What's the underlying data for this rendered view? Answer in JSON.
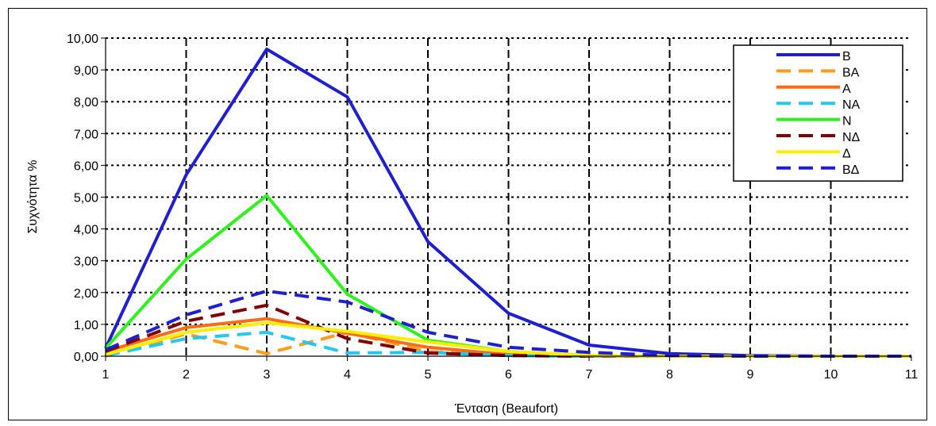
{
  "chart_data": {
    "type": "line",
    "title": "",
    "xlabel": "Ένταση (Beaufort)",
    "ylabel": "Συχνότητα %",
    "x": [
      1,
      2,
      3,
      4,
      5,
      6,
      7,
      8,
      9,
      10,
      11
    ],
    "x_tick_labels": [
      "1",
      "2",
      "3",
      "4",
      "5",
      "6",
      "7",
      "8",
      "9",
      "10",
      "11"
    ],
    "xlim": [
      1,
      11
    ],
    "ylim": [
      0,
      10
    ],
    "y_ticks": [
      0,
      1,
      2,
      3,
      4,
      5,
      6,
      7,
      8,
      9,
      10
    ],
    "y_tick_labels": [
      "0,00",
      "1,00",
      "2,00",
      "3,00",
      "4,00",
      "5,00",
      "6,00",
      "7,00",
      "8,00",
      "9,00",
      "10,00"
    ],
    "grid": true,
    "legend_position": "top-right",
    "series": [
      {
        "name": "Β",
        "color": "#1f1fd1",
        "dash": "solid",
        "values": [
          0.25,
          5.7,
          9.65,
          8.15,
          3.6,
          1.35,
          0.35,
          0.08,
          0.02,
          0.0,
          0.0
        ]
      },
      {
        "name": "ΒΑ",
        "color": "#ff9d1a",
        "dash": "dashed",
        "values": [
          0.02,
          0.7,
          0.08,
          0.75,
          0.15,
          0.02,
          0.0,
          0.0,
          0.0,
          0.0,
          0.0
        ]
      },
      {
        "name": "Α",
        "color": "#ff6a14",
        "dash": "solid",
        "values": [
          0.15,
          0.9,
          1.18,
          0.72,
          0.28,
          0.05,
          0.0,
          0.0,
          0.0,
          0.0,
          0.0
        ]
      },
      {
        "name": "ΝΑ",
        "color": "#22c8f0",
        "dash": "dashed",
        "values": [
          0.02,
          0.55,
          0.75,
          0.1,
          0.12,
          0.02,
          0.0,
          0.0,
          0.0,
          0.0,
          0.0
        ]
      },
      {
        "name": "Ν",
        "color": "#2ef21b",
        "dash": "solid",
        "values": [
          0.25,
          3.05,
          5.05,
          1.95,
          0.5,
          0.15,
          0.02,
          0.0,
          0.0,
          0.0,
          0.0
        ]
      },
      {
        "name": "ΝΔ",
        "color": "#800000",
        "dash": "dashed",
        "values": [
          0.15,
          1.1,
          1.6,
          0.55,
          0.1,
          0.02,
          0.0,
          0.0,
          0.0,
          0.0,
          0.0
        ]
      },
      {
        "name": "Δ",
        "color": "#ffee00",
        "dash": "solid",
        "values": [
          0.05,
          0.75,
          1.05,
          0.78,
          0.45,
          0.15,
          0.02,
          0.0,
          0.0,
          0.0,
          0.0
        ]
      },
      {
        "name": "ΒΔ",
        "color": "#1f1fd1",
        "dash": "dashed",
        "values": [
          0.2,
          1.3,
          2.05,
          1.7,
          0.75,
          0.28,
          0.12,
          0.02,
          0.0,
          0.0,
          0.0
        ]
      }
    ]
  }
}
